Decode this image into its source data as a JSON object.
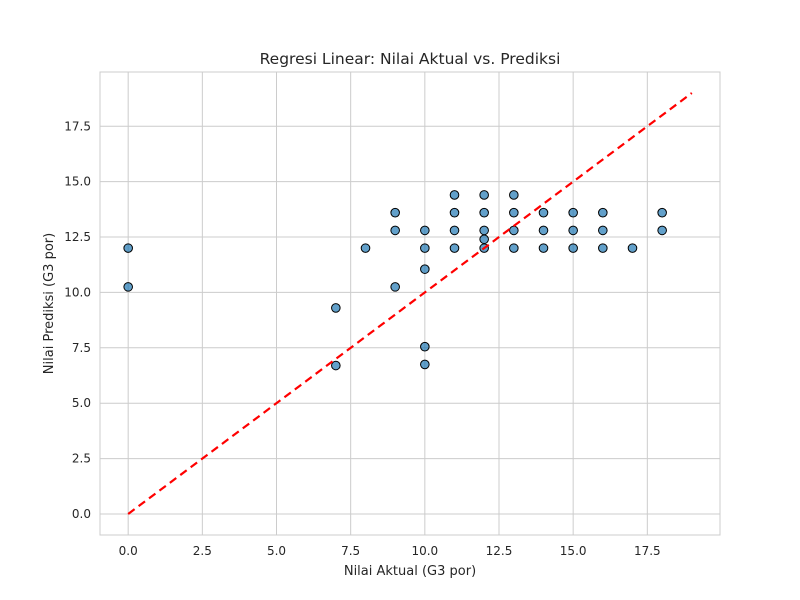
{
  "chart_data": {
    "type": "scatter",
    "title": "Regresi Linear: Nilai Aktual vs. Prediksi",
    "xlabel": "Nilai Aktual (G3 por)",
    "ylabel": "Nilai Prediksi (G3 por)",
    "xlim": [
      -0.95,
      19.95
    ],
    "ylim": [
      -0.95,
      19.95
    ],
    "xticks": [
      "0.0",
      "2.5",
      "5.0",
      "7.5",
      "10.0",
      "12.5",
      "15.0",
      "17.5"
    ],
    "yticks": [
      "0.0",
      "2.5",
      "5.0",
      "7.5",
      "10.0",
      "12.5",
      "15.0",
      "17.5"
    ],
    "grid": true,
    "colors": {
      "point_fill": "#1f77b4",
      "point_edge": "#000000",
      "reference_line": "#ff0000",
      "grid": "#cccccc"
    },
    "reference_line": {
      "style": "dashed",
      "x": [
        0,
        19
      ],
      "y": [
        0,
        19
      ]
    },
    "points": [
      {
        "x": 0,
        "y": 12.0
      },
      {
        "x": 0,
        "y": 10.25
      },
      {
        "x": 7,
        "y": 9.3
      },
      {
        "x": 7,
        "y": 6.7
      },
      {
        "x": 8,
        "y": 12.0
      },
      {
        "x": 9,
        "y": 13.6
      },
      {
        "x": 9,
        "y": 12.8
      },
      {
        "x": 9,
        "y": 10.25
      },
      {
        "x": 10,
        "y": 12.8
      },
      {
        "x": 10,
        "y": 12.0
      },
      {
        "x": 10,
        "y": 11.05
      },
      {
        "x": 10,
        "y": 7.55
      },
      {
        "x": 10,
        "y": 6.75
      },
      {
        "x": 11,
        "y": 14.4
      },
      {
        "x": 11,
        "y": 13.6
      },
      {
        "x": 11,
        "y": 12.8
      },
      {
        "x": 11,
        "y": 12.0
      },
      {
        "x": 12,
        "y": 14.4
      },
      {
        "x": 12,
        "y": 13.6
      },
      {
        "x": 12,
        "y": 12.8
      },
      {
        "x": 12,
        "y": 12.4
      },
      {
        "x": 12,
        "y": 12.0
      },
      {
        "x": 13,
        "y": 14.4
      },
      {
        "x": 13,
        "y": 13.6
      },
      {
        "x": 13,
        "y": 12.8
      },
      {
        "x": 13,
        "y": 12.0
      },
      {
        "x": 14,
        "y": 13.6
      },
      {
        "x": 14,
        "y": 12.8
      },
      {
        "x": 14,
        "y": 12.0
      },
      {
        "x": 15,
        "y": 13.6
      },
      {
        "x": 15,
        "y": 12.8
      },
      {
        "x": 15,
        "y": 12.0
      },
      {
        "x": 16,
        "y": 13.6
      },
      {
        "x": 16,
        "y": 12.8
      },
      {
        "x": 16,
        "y": 12.0
      },
      {
        "x": 17,
        "y": 12.0
      },
      {
        "x": 18,
        "y": 13.6
      },
      {
        "x": 18,
        "y": 12.8
      }
    ]
  }
}
